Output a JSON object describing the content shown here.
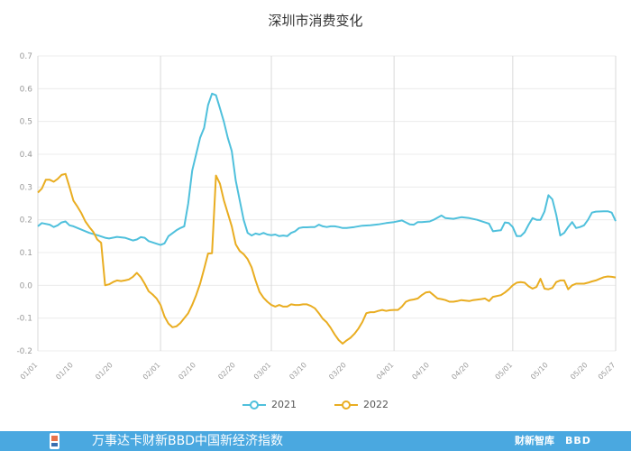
{
  "title": "深圳市消费变化",
  "footer": {
    "text": "万事达卡财新BBD中国新经济指数",
    "brand": "财新智库",
    "brand2": "BBD"
  },
  "colors": {
    "s2021": "#4fc0dc",
    "s2022": "#e9ad21",
    "grid": "#d9d9d9",
    "axis_text": "#999999"
  },
  "chart_data": {
    "type": "line",
    "title": "深圳市消费变化",
    "ylim": [
      -0.2,
      0.7
    ],
    "yticks": [
      -0.2,
      -0.1,
      0.0,
      0.1,
      0.2,
      0.3,
      0.4,
      0.5,
      0.6,
      0.7
    ],
    "ytick_labels": [
      "-0.2",
      "-0.1",
      "0.0",
      "0.1",
      "0.2",
      "0.3",
      "0.4",
      "0.5",
      "0.6",
      "0.7"
    ],
    "xticks": [
      "01/01",
      "01/10",
      "01/20",
      "02/01",
      "02/10",
      "02/20",
      "03/01",
      "03/10",
      "03/20",
      "04/01",
      "04/10",
      "04/20",
      "05/01",
      "05/10",
      "05/20",
      "05/27"
    ],
    "xtick_day": [
      1,
      10,
      20,
      32,
      41,
      51,
      60,
      69,
      79,
      91,
      100,
      110,
      121,
      130,
      140,
      147
    ],
    "vgrid_days": [
      32,
      60,
      91,
      121
    ],
    "legend_position": "bottom",
    "series": [
      {
        "name": "2021",
        "color": "#4fc0dc",
        "points": [
          [
            1,
            0.18
          ],
          [
            2,
            0.19
          ],
          [
            4,
            0.185
          ],
          [
            5,
            0.178
          ],
          [
            6,
            0.183
          ],
          [
            7,
            0.192
          ],
          [
            8,
            0.195
          ],
          [
            9,
            0.183
          ],
          [
            10,
            0.18
          ],
          [
            12,
            0.17
          ],
          [
            14,
            0.16
          ],
          [
            16,
            0.153
          ],
          [
            18,
            0.145
          ],
          [
            19,
            0.143
          ],
          [
            21,
            0.148
          ],
          [
            23,
            0.145
          ],
          [
            25,
            0.137
          ],
          [
            26,
            0.14
          ],
          [
            27,
            0.147
          ],
          [
            28,
            0.145
          ],
          [
            29,
            0.135
          ],
          [
            31,
            0.127
          ],
          [
            32,
            0.123
          ],
          [
            33,
            0.128
          ],
          [
            34,
            0.15
          ],
          [
            36,
            0.168
          ],
          [
            37,
            0.175
          ],
          [
            38,
            0.18
          ],
          [
            39,
            0.25
          ],
          [
            40,
            0.35
          ],
          [
            41,
            0.4
          ],
          [
            42,
            0.45
          ],
          [
            43,
            0.48
          ],
          [
            44,
            0.55
          ],
          [
            45,
            0.585
          ],
          [
            46,
            0.58
          ],
          [
            47,
            0.54
          ],
          [
            48,
            0.5
          ],
          [
            49,
            0.45
          ],
          [
            50,
            0.41
          ],
          [
            51,
            0.32
          ],
          [
            52,
            0.26
          ],
          [
            53,
            0.2
          ],
          [
            54,
            0.16
          ],
          [
            55,
            0.152
          ],
          [
            56,
            0.158
          ],
          [
            57,
            0.155
          ],
          [
            58,
            0.16
          ],
          [
            59,
            0.155
          ],
          [
            60,
            0.153
          ],
          [
            61,
            0.155
          ],
          [
            62,
            0.15
          ],
          [
            63,
            0.152
          ],
          [
            64,
            0.15
          ],
          [
            65,
            0.16
          ],
          [
            66,
            0.165
          ],
          [
            67,
            0.175
          ],
          [
            68,
            0.177
          ],
          [
            69,
            0.177
          ],
          [
            70,
            0.178
          ],
          [
            71,
            0.178
          ],
          [
            72,
            0.185
          ],
          [
            73,
            0.18
          ],
          [
            74,
            0.178
          ],
          [
            75,
            0.18
          ],
          [
            76,
            0.18
          ],
          [
            77,
            0.178
          ],
          [
            78,
            0.175
          ],
          [
            79,
            0.175
          ],
          [
            81,
            0.178
          ],
          [
            83,
            0.182
          ],
          [
            85,
            0.183
          ],
          [
            87,
            0.186
          ],
          [
            89,
            0.19
          ],
          [
            91,
            0.193
          ],
          [
            93,
            0.198
          ],
          [
            94,
            0.192
          ],
          [
            95,
            0.186
          ],
          [
            96,
            0.185
          ],
          [
            97,
            0.193
          ],
          [
            98,
            0.193
          ],
          [
            100,
            0.195
          ],
          [
            101,
            0.2
          ],
          [
            103,
            0.213
          ],
          [
            104,
            0.205
          ],
          [
            106,
            0.203
          ],
          [
            108,
            0.208
          ],
          [
            110,
            0.205
          ],
          [
            112,
            0.2
          ],
          [
            114,
            0.192
          ],
          [
            115,
            0.188
          ],
          [
            116,
            0.165
          ],
          [
            117,
            0.167
          ],
          [
            118,
            0.168
          ],
          [
            119,
            0.192
          ],
          [
            120,
            0.19
          ],
          [
            121,
            0.178
          ],
          [
            122,
            0.15
          ],
          [
            123,
            0.15
          ],
          [
            124,
            0.162
          ],
          [
            125,
            0.185
          ],
          [
            126,
            0.205
          ],
          [
            127,
            0.2
          ],
          [
            128,
            0.2
          ],
          [
            129,
            0.225
          ],
          [
            130,
            0.275
          ],
          [
            131,
            0.262
          ],
          [
            132,
            0.215
          ],
          [
            133,
            0.152
          ],
          [
            134,
            0.16
          ],
          [
            135,
            0.178
          ],
          [
            136,
            0.193
          ],
          [
            137,
            0.175
          ],
          [
            138,
            0.178
          ],
          [
            139,
            0.183
          ],
          [
            140,
            0.2
          ],
          [
            141,
            0.222
          ],
          [
            142,
            0.225
          ],
          [
            144,
            0.226
          ],
          [
            145,
            0.226
          ],
          [
            146,
            0.222
          ],
          [
            147,
            0.196
          ]
        ]
      },
      {
        "name": "2022",
        "color": "#e9ad21",
        "points": [
          [
            1,
            0.283
          ],
          [
            2,
            0.295
          ],
          [
            3,
            0.322
          ],
          [
            4,
            0.322
          ],
          [
            5,
            0.316
          ],
          [
            6,
            0.325
          ],
          [
            7,
            0.337
          ],
          [
            8,
            0.34
          ],
          [
            9,
            0.3
          ],
          [
            10,
            0.258
          ],
          [
            11,
            0.24
          ],
          [
            12,
            0.22
          ],
          [
            13,
            0.195
          ],
          [
            14,
            0.178
          ],
          [
            15,
            0.163
          ],
          [
            16,
            0.14
          ],
          [
            17,
            0.13
          ],
          [
            18,
            0.0
          ],
          [
            19,
            0.003
          ],
          [
            20,
            0.01
          ],
          [
            21,
            0.015
          ],
          [
            22,
            0.013
          ],
          [
            23,
            0.015
          ],
          [
            24,
            0.018
          ],
          [
            25,
            0.026
          ],
          [
            26,
            0.038
          ],
          [
            27,
            0.025
          ],
          [
            28,
            0.005
          ],
          [
            29,
            -0.018
          ],
          [
            30,
            -0.028
          ],
          [
            31,
            -0.04
          ],
          [
            32,
            -0.06
          ],
          [
            33,
            -0.095
          ],
          [
            34,
            -0.117
          ],
          [
            35,
            -0.128
          ],
          [
            36,
            -0.125
          ],
          [
            37,
            -0.115
          ],
          [
            38,
            -0.1
          ],
          [
            39,
            -0.085
          ],
          [
            40,
            -0.06
          ],
          [
            41,
            -0.03
          ],
          [
            42,
            0.005
          ],
          [
            43,
            0.05
          ],
          [
            44,
            0.097
          ],
          [
            45,
            0.098
          ],
          [
            46,
            0.335
          ],
          [
            47,
            0.31
          ],
          [
            48,
            0.26
          ],
          [
            49,
            0.22
          ],
          [
            50,
            0.18
          ],
          [
            51,
            0.125
          ],
          [
            52,
            0.105
          ],
          [
            53,
            0.095
          ],
          [
            54,
            0.08
          ],
          [
            55,
            0.055
          ],
          [
            56,
            0.015
          ],
          [
            57,
            -0.02
          ],
          [
            58,
            -0.038
          ],
          [
            59,
            -0.05
          ],
          [
            60,
            -0.06
          ],
          [
            61,
            -0.065
          ],
          [
            62,
            -0.06
          ],
          [
            63,
            -0.065
          ],
          [
            64,
            -0.065
          ],
          [
            65,
            -0.058
          ],
          [
            66,
            -0.06
          ],
          [
            67,
            -0.06
          ],
          [
            68,
            -0.058
          ],
          [
            69,
            -0.058
          ],
          [
            70,
            -0.063
          ],
          [
            71,
            -0.07
          ],
          [
            72,
            -0.085
          ],
          [
            73,
            -0.102
          ],
          [
            74,
            -0.113
          ],
          [
            75,
            -0.13
          ],
          [
            76,
            -0.15
          ],
          [
            77,
            -0.167
          ],
          [
            78,
            -0.178
          ],
          [
            79,
            -0.168
          ],
          [
            80,
            -0.16
          ],
          [
            81,
            -0.148
          ],
          [
            82,
            -0.132
          ],
          [
            83,
            -0.112
          ],
          [
            84,
            -0.085
          ],
          [
            85,
            -0.082
          ],
          [
            86,
            -0.082
          ],
          [
            87,
            -0.078
          ],
          [
            88,
            -0.075
          ],
          [
            89,
            -0.078
          ],
          [
            90,
            -0.076
          ],
          [
            91,
            -0.075
          ],
          [
            92,
            -0.075
          ],
          [
            93,
            -0.065
          ],
          [
            94,
            -0.05
          ],
          [
            95,
            -0.045
          ],
          [
            96,
            -0.043
          ],
          [
            97,
            -0.04
          ],
          [
            98,
            -0.03
          ],
          [
            99,
            -0.022
          ],
          [
            100,
            -0.02
          ],
          [
            101,
            -0.03
          ],
          [
            102,
            -0.04
          ],
          [
            103,
            -0.042
          ],
          [
            104,
            -0.045
          ],
          [
            105,
            -0.05
          ],
          [
            106,
            -0.05
          ],
          [
            107,
            -0.048
          ],
          [
            108,
            -0.045
          ],
          [
            110,
            -0.048
          ],
          [
            111,
            -0.045
          ],
          [
            113,
            -0.042
          ],
          [
            114,
            -0.04
          ],
          [
            115,
            -0.048
          ],
          [
            116,
            -0.035
          ],
          [
            118,
            -0.03
          ],
          [
            119,
            -0.022
          ],
          [
            120,
            -0.012
          ],
          [
            121,
            0.0
          ],
          [
            122,
            0.008
          ],
          [
            123,
            0.01
          ],
          [
            124,
            0.008
          ],
          [
            125,
            -0.003
          ],
          [
            126,
            -0.01
          ],
          [
            127,
            -0.005
          ],
          [
            128,
            0.02
          ],
          [
            129,
            -0.01
          ],
          [
            130,
            -0.012
          ],
          [
            131,
            -0.008
          ],
          [
            132,
            0.01
          ],
          [
            133,
            0.015
          ],
          [
            134,
            0.015
          ],
          [
            135,
            -0.012
          ],
          [
            136,
            0.0
          ],
          [
            137,
            0.005
          ],
          [
            138,
            0.005
          ],
          [
            139,
            0.005
          ],
          [
            140,
            0.008
          ],
          [
            141,
            0.012
          ],
          [
            142,
            0.015
          ],
          [
            143,
            0.02
          ],
          [
            144,
            0.025
          ],
          [
            145,
            0.027
          ],
          [
            146,
            0.026
          ],
          [
            147,
            0.024
          ]
        ]
      }
    ]
  }
}
